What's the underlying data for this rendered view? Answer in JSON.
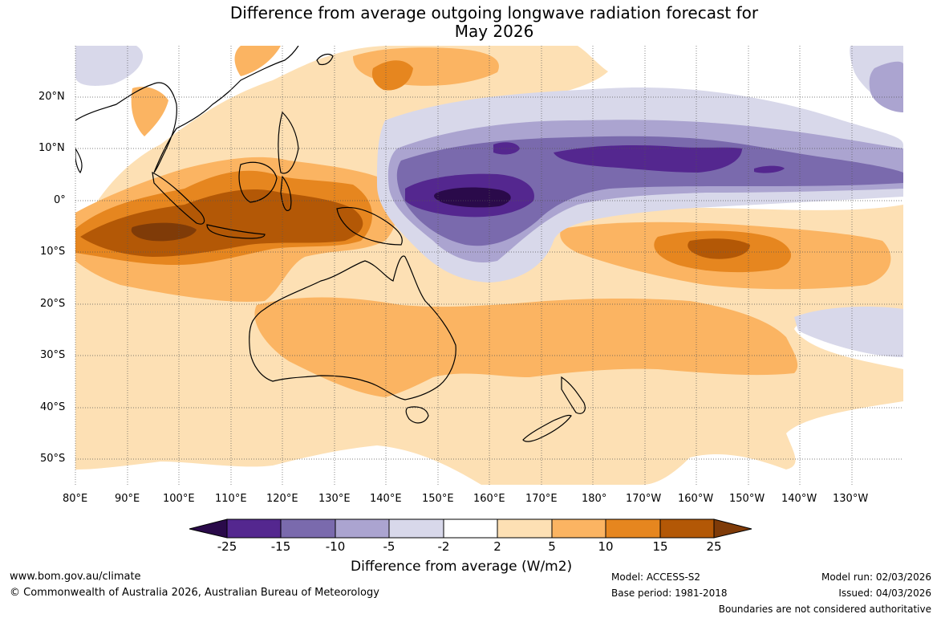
{
  "title": {
    "line1": "Difference from average outgoing longwave radiation forecast for",
    "line2": "May 2026"
  },
  "map": {
    "lon_ticks": [
      "80°E",
      "90°E",
      "100°E",
      "110°E",
      "120°E",
      "130°E",
      "140°E",
      "150°E",
      "160°E",
      "170°E",
      "180°",
      "170°W",
      "160°W",
      "150°W",
      "140°W",
      "130°W"
    ],
    "lat_ticks": [
      "20°N",
      "10°N",
      "0°",
      "10°S",
      "20°S",
      "30°S",
      "40°S",
      "50°S"
    ]
  },
  "colorbar": {
    "labels": [
      "-25",
      "-15",
      "-10",
      "-5",
      "-2",
      "2",
      "5",
      "10",
      "15",
      "25"
    ],
    "bins": [
      {
        "range": "< -25",
        "color": "#2a0a4a"
      },
      {
        "range": "-25 to -15",
        "color": "#54278f"
      },
      {
        "range": "-15 to -10",
        "color": "#7a6aad"
      },
      {
        "range": "-10 to -5",
        "color": "#aba4d0"
      },
      {
        "range": "-5 to -2",
        "color": "#d8d8ea"
      },
      {
        "range": "-2 to 2",
        "color": "#ffffff"
      },
      {
        "range": "2 to 5",
        "color": "#fde0b4"
      },
      {
        "range": "5 to 10",
        "color": "#fbb462"
      },
      {
        "range": "10 to 15",
        "color": "#e6861f"
      },
      {
        "range": "15 to 25",
        "color": "#b35806"
      },
      {
        "range": "> 25",
        "color": "#7f3b08"
      }
    ],
    "axis_label": "Difference from average (W/m2)"
  },
  "footer": {
    "website": "www.bom.gov.au/climate",
    "copyright": "© Commonwealth of Australia 2026, Australian Bureau of Meteorology",
    "model": "Model: ACCESS-S2",
    "base_period": "Base period: 1981-2018",
    "model_run": "Model run: 02/03/2026",
    "issued": "Issued: 04/03/2026",
    "disclaimer": "Boundaries are not considered authoritative"
  }
}
